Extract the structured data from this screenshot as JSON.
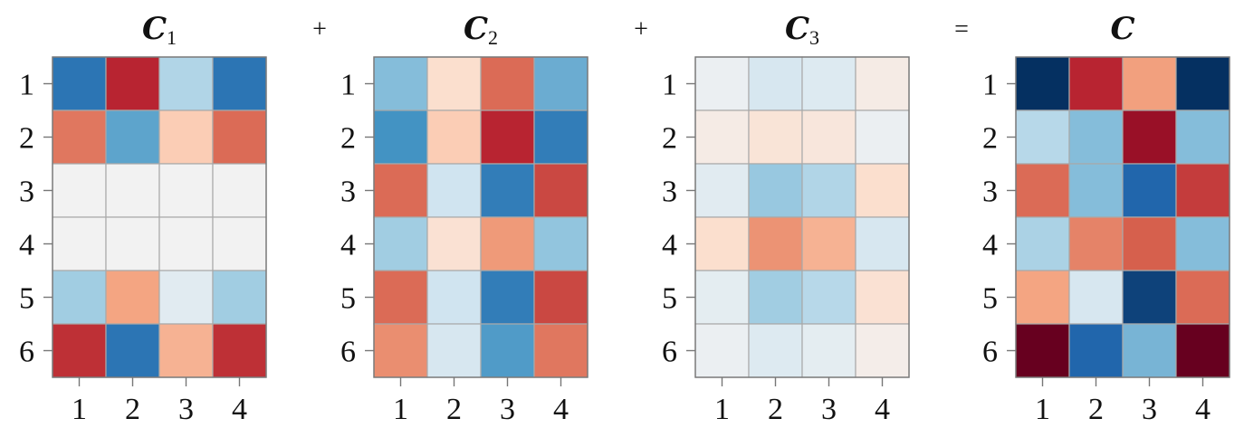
{
  "chart_data": [
    {
      "type": "heatmap",
      "title_main": "C",
      "title_sub": "1",
      "x_categories": [
        "1",
        "2",
        "3",
        "4"
      ],
      "y_categories": [
        "1",
        "2",
        "3",
        "4",
        "5",
        "6"
      ],
      "values": [
        [
          0.8,
          -0.85,
          0.2,
          0.8
        ],
        [
          -0.5,
          0.5,
          -0.15,
          -0.55
        ],
        [
          0.0,
          0.0,
          0.0,
          0.0
        ],
        [
          0.0,
          0.0,
          0.0,
          0.0
        ],
        [
          0.25,
          -0.3,
          0.05,
          0.25
        ],
        [
          -0.8,
          0.8,
          -0.25,
          -0.8
        ]
      ]
    },
    {
      "type": "heatmap",
      "title_main": "C",
      "title_sub": "2",
      "x_categories": [
        "1",
        "2",
        "3",
        "4"
      ],
      "y_categories": [
        "1",
        "2",
        "3",
        "4",
        "5",
        "6"
      ],
      "values": [
        [
          0.35,
          -0.08,
          -0.55,
          0.45
        ],
        [
          0.6,
          -0.15,
          -0.85,
          0.75
        ],
        [
          -0.55,
          0.1,
          0.75,
          -0.7
        ],
        [
          0.25,
          -0.07,
          -0.35,
          0.3
        ],
        [
          -0.55,
          0.1,
          0.75,
          -0.7
        ],
        [
          -0.4,
          0.08,
          0.55,
          -0.5
        ]
      ]
    },
    {
      "type": "heatmap",
      "title_main": "C",
      "title_sub": "3",
      "x_categories": [
        "1",
        "2",
        "3",
        "4"
      ],
      "y_categories": [
        "1",
        "2",
        "3",
        "4",
        "5",
        "6"
      ],
      "values": [
        [
          0.02,
          0.08,
          0.06,
          -0.03
        ],
        [
          -0.03,
          -0.06,
          -0.05,
          0.02
        ],
        [
          0.05,
          0.28,
          0.2,
          -0.08
        ],
        [
          -0.08,
          -0.38,
          -0.25,
          0.08
        ],
        [
          0.04,
          0.25,
          0.18,
          -0.07
        ],
        [
          0.02,
          0.06,
          0.04,
          -0.02
        ]
      ]
    },
    {
      "type": "heatmap",
      "title_main": "C",
      "title_sub": "",
      "x_categories": [
        "1",
        "2",
        "3",
        "4"
      ],
      "y_categories": [
        "1",
        "2",
        "3",
        "4",
        "5",
        "6"
      ],
      "values": [
        [
          1.2,
          -0.85,
          -0.32,
          1.2
        ],
        [
          0.18,
          0.35,
          -1.0,
          0.35
        ],
        [
          -0.55,
          0.35,
          0.9,
          -0.75
        ],
        [
          0.22,
          -0.45,
          -0.6,
          0.35
        ],
        [
          -0.3,
          0.08,
          1.1,
          -0.55
        ],
        [
          -1.2,
          0.9,
          0.4,
          -1.2
        ]
      ]
    }
  ],
  "operators": [
    "+",
    "+",
    "="
  ],
  "colors": {
    "negative": "#67001f",
    "neutral": "#f2f2f2",
    "positive": "#053061",
    "cell_border": "#a9a9a9",
    "axis": "#777777"
  },
  "color_range": [
    -1.2,
    1.2
  ]
}
